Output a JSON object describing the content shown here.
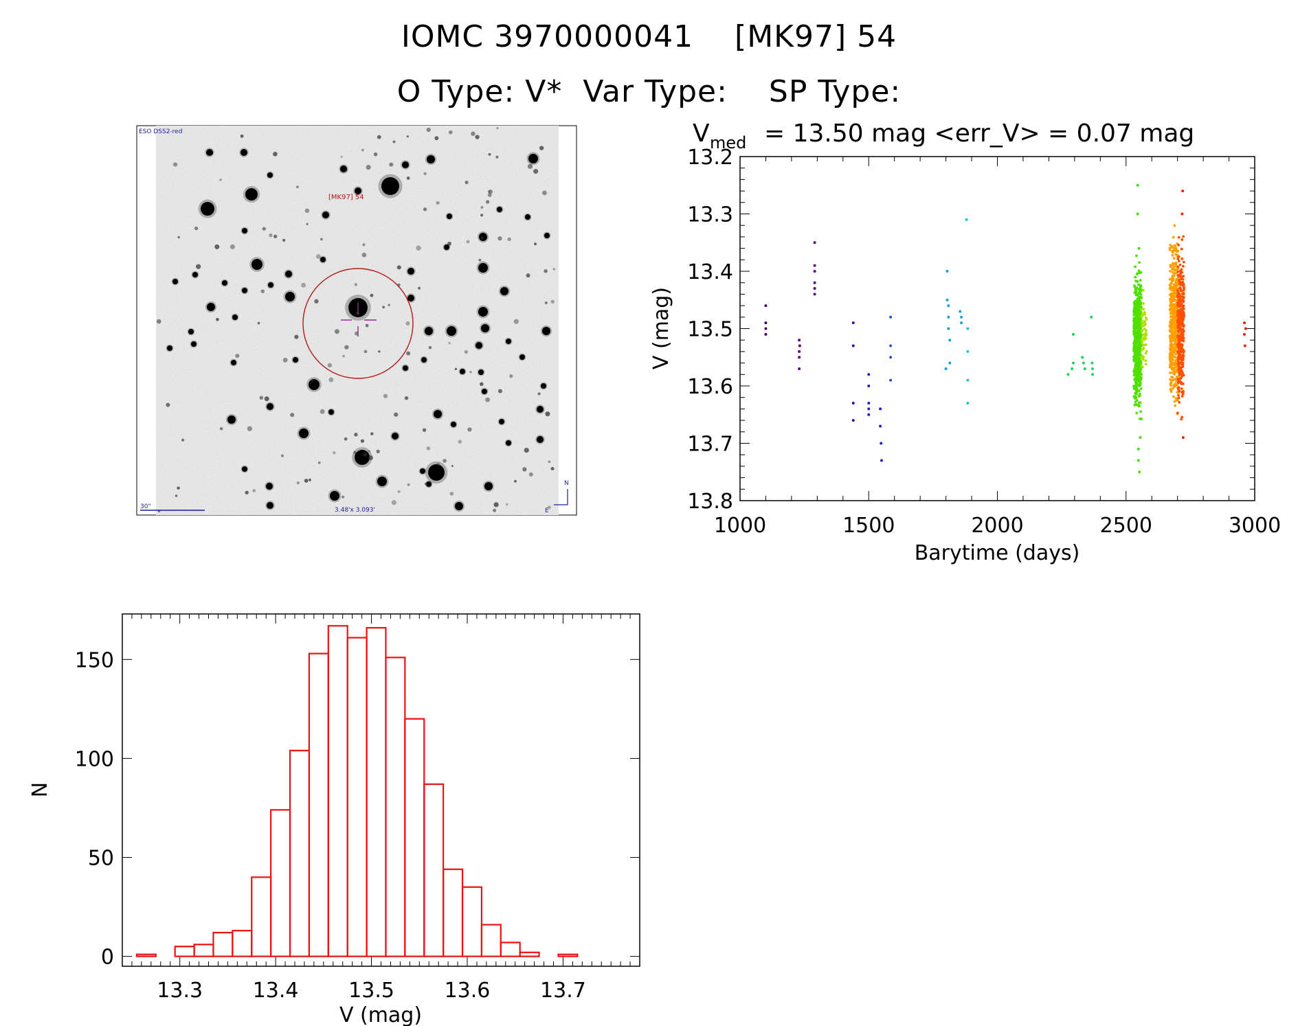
{
  "header": {
    "object_ids": "IOMC 3970000041    [MK97] 54",
    "types_line": "O Type: V*  Var Type:    SP Type:"
  },
  "finder_chart": {
    "survey_label": "ESO DSS2-red",
    "target_label": "[MK97] 54",
    "scale_label": "30\"",
    "size_label": "3.48'x 3.093'",
    "north_label": "N",
    "east_label": "E"
  },
  "chart_data": [
    {
      "type": "scatter",
      "title_prefix": "V",
      "title_subscript": "med",
      "title_rest": "= 13.50 mag <err_V> = 0.07 mag",
      "xlabel": "Barytime (days)",
      "ylabel": "V (mag)",
      "xlim": [
        1000,
        3000
      ],
      "ylim": [
        13.8,
        13.2
      ],
      "xticks": [
        "1000",
        "1500",
        "2000",
        "2500",
        "3000"
      ],
      "yticks": [
        "13.2",
        "13.3",
        "13.4",
        "13.5",
        "13.6",
        "13.7",
        "13.8"
      ],
      "groups": [
        {
          "color": "#400060",
          "x": [
            1100,
            1100,
            1100,
            1100
          ],
          "y": [
            13.46,
            13.49,
            13.5,
            13.51
          ]
        },
        {
          "color": "#5a0080",
          "x": [
            1230,
            1230,
            1230,
            1230,
            1232
          ],
          "y": [
            13.52,
            13.54,
            13.55,
            13.57,
            13.53
          ]
        },
        {
          "color": "#5a0080",
          "x": [
            1290,
            1290,
            1290,
            1290,
            1290,
            1290
          ],
          "y": [
            13.35,
            13.39,
            13.4,
            13.42,
            13.43,
            13.44
          ]
        },
        {
          "color": "#4000a0",
          "x": [
            1440,
            1440,
            1440,
            1440
          ],
          "y": [
            13.49,
            13.53,
            13.63,
            13.66
          ]
        },
        {
          "color": "#2020c0",
          "x": [
            1500,
            1500,
            1500,
            1500,
            1500,
            1545,
            1545,
            1548,
            1550
          ],
          "y": [
            13.58,
            13.6,
            13.63,
            13.64,
            13.65,
            13.64,
            13.67,
            13.7,
            13.73
          ]
        },
        {
          "color": "#2050e0",
          "x": [
            1585,
            1585,
            1585,
            1585
          ],
          "y": [
            13.48,
            13.53,
            13.55,
            13.59
          ]
        },
        {
          "color": "#10a0e0",
          "x": [
            1800,
            1805,
            1805,
            1810,
            1810,
            1810,
            1815,
            1815,
            1855,
            1860,
            1860
          ],
          "y": [
            13.57,
            13.4,
            13.45,
            13.46,
            13.48,
            13.5,
            13.52,
            13.56,
            13.47,
            13.48,
            13.49
          ]
        },
        {
          "color": "#20c0d0",
          "x": [
            1880,
            1885,
            1885,
            1885,
            1885
          ],
          "y": [
            13.31,
            13.5,
            13.54,
            13.59,
            13.63
          ]
        },
        {
          "color": "#20d060",
          "x": [
            2275,
            2290,
            2295,
            2295,
            2330,
            2335,
            2340,
            2365,
            2368,
            2370,
            2370
          ],
          "y": [
            13.58,
            13.57,
            13.51,
            13.56,
            13.55,
            13.56,
            13.57,
            13.48,
            13.56,
            13.57,
            13.58
          ]
        },
        {
          "color": "#40e010",
          "x": [
            2545,
            2545,
            2548,
            2552,
            2555,
            2550,
            2548
          ],
          "y": [
            13.25,
            13.3,
            13.73,
            13.75,
            13.69,
            13.36,
            13.71
          ]
        },
        {
          "color": "#ee2200",
          "x": [
            2720,
            2718,
            2722,
            2960,
            2960,
            2962,
            2965
          ],
          "y": [
            13.26,
            13.3,
            13.69,
            13.49,
            13.51,
            13.53,
            13.5
          ]
        }
      ],
      "clusters": [
        {
          "color": "#50e000",
          "x_range": [
            2530,
            2560
          ],
          "y_range": [
            13.36,
            13.68
          ],
          "count": 600
        },
        {
          "color": "#b0e000",
          "x_range": [
            2560,
            2580
          ],
          "y_range": [
            13.42,
            13.6
          ],
          "count": 60
        },
        {
          "color": "#ffa000",
          "x_range": [
            2670,
            2705
          ],
          "y_range": [
            13.3,
            13.68
          ],
          "count": 500
        },
        {
          "color": "#ff5000",
          "x_range": [
            2700,
            2725
          ],
          "y_range": [
            13.31,
            13.69
          ],
          "count": 350
        }
      ]
    },
    {
      "type": "histogram",
      "xlabel": "V (mag)",
      "ylabel": "N",
      "xlim": [
        13.24,
        13.78
      ],
      "ylim": [
        -5,
        173
      ],
      "xticks": [
        "13.3",
        "13.4",
        "13.5",
        "13.6",
        "13.7"
      ],
      "yticks": [
        "0",
        "50",
        "100",
        "150"
      ],
      "bin_edges": [
        13.255,
        13.275,
        13.295,
        13.315,
        13.335,
        13.355,
        13.375,
        13.395,
        13.415,
        13.435,
        13.455,
        13.475,
        13.495,
        13.515,
        13.535,
        13.555,
        13.575,
        13.595,
        13.615,
        13.635,
        13.655,
        13.675,
        13.695,
        13.715,
        13.735,
        13.755
      ],
      "counts": [
        1,
        0,
        5,
        6,
        12,
        13,
        40,
        74,
        104,
        153,
        167,
        161,
        166,
        151,
        120,
        87,
        44,
        35,
        16,
        7,
        2,
        0,
        1,
        0,
        0
      ],
      "color": "#ee1111"
    }
  ]
}
